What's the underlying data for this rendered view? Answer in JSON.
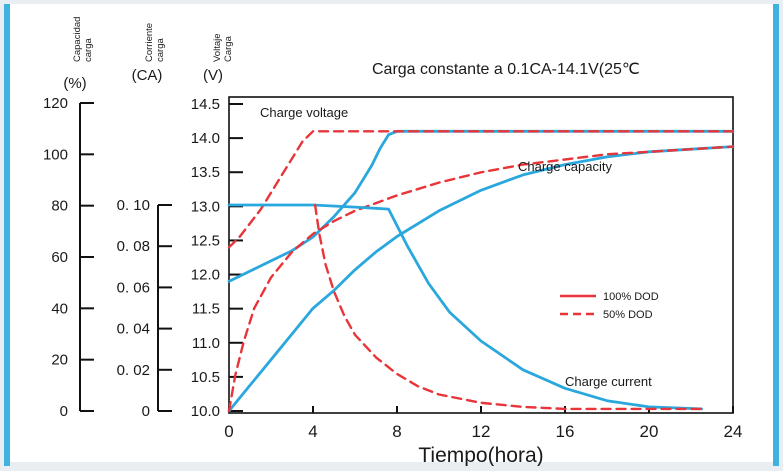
{
  "chart_data": {
    "type": "line",
    "title": "Carga constante a 0.1CA-14.1V(25℃",
    "xlabel": "Tiempo(hora)",
    "xlim": [
      0,
      24
    ],
    "x_ticks": [
      "0",
      "4",
      "8",
      "12",
      "16",
      "20",
      "24"
    ],
    "grid": false,
    "legend_position": "center-right",
    "colors": {
      "capacity_current": "#2aa7dc",
      "voltage_and_dod": "#e8353a",
      "frame": "#3fb2e0"
    },
    "axes": [
      {
        "id": "capacity",
        "label_lines": [
          "Capacidad",
          "carga"
        ],
        "unit": "(%)",
        "ylim": [
          0,
          120
        ],
        "ticks": [
          "0",
          "20",
          "40",
          "60",
          "80",
          "100",
          "120"
        ]
      },
      {
        "id": "current",
        "label_lines": [
          "Corriente",
          "carga"
        ],
        "unit": "(CA)",
        "ylim": [
          0,
          0.1
        ],
        "ticks": [
          "0",
          "0. 02",
          "0. 04",
          "0. 06",
          "0. 08",
          "0. 10"
        ]
      },
      {
        "id": "voltage",
        "label_lines": [
          "Voltaje",
          "Carga"
        ],
        "unit": "(V)",
        "ylim": [
          10.0,
          14.5
        ],
        "ticks": [
          "10.0",
          "10.5",
          "11.0",
          "11.5",
          "12.0",
          "12.5",
          "13.0",
          "13.5",
          "14.0",
          "14.5"
        ]
      }
    ],
    "legend": [
      {
        "label": "100% DOD",
        "style": "solid"
      },
      {
        "label": "50% DOD",
        "style": "dashed"
      }
    ],
    "annotations": [
      "Charge voltage",
      "Charge capacity",
      "Charge current"
    ],
    "series": [
      {
        "group": "Charge voltage",
        "dod": "100%",
        "axis": "voltage",
        "color": "#2aa7dc",
        "dash": false,
        "points": [
          [
            0,
            11.9
          ],
          [
            1,
            12.05
          ],
          [
            2,
            12.2
          ],
          [
            3,
            12.35
          ],
          [
            4,
            12.55
          ],
          [
            5,
            12.85
          ],
          [
            6,
            13.2
          ],
          [
            6.8,
            13.6
          ],
          [
            7.2,
            13.85
          ],
          [
            7.6,
            14.05
          ],
          [
            8,
            14.1
          ],
          [
            12,
            14.1
          ],
          [
            16,
            14.1
          ],
          [
            20,
            14.1
          ],
          [
            24,
            14.1
          ]
        ]
      },
      {
        "group": "Charge voltage",
        "dod": "50%",
        "axis": "voltage",
        "color": "#e8353a",
        "dash": true,
        "points": [
          [
            0,
            12.4
          ],
          [
            0.5,
            12.55
          ],
          [
            1,
            12.75
          ],
          [
            1.5,
            12.95
          ],
          [
            2,
            13.2
          ],
          [
            2.5,
            13.45
          ],
          [
            3,
            13.7
          ],
          [
            3.5,
            13.95
          ],
          [
            4,
            14.1
          ],
          [
            8,
            14.1
          ],
          [
            12,
            14.1
          ],
          [
            16,
            14.1
          ],
          [
            20,
            14.1
          ],
          [
            24,
            14.1
          ]
        ]
      },
      {
        "group": "Charge capacity",
        "dod": "100%",
        "axis": "capacity",
        "color": "#2aa7dc",
        "dash": false,
        "points": [
          [
            0,
            0
          ],
          [
            1,
            10
          ],
          [
            2,
            20
          ],
          [
            3,
            30
          ],
          [
            4,
            40
          ],
          [
            5,
            47
          ],
          [
            6,
            55
          ],
          [
            7,
            62
          ],
          [
            8,
            68
          ],
          [
            10,
            78
          ],
          [
            12,
            86
          ],
          [
            14,
            92
          ],
          [
            16,
            96
          ],
          [
            18,
            99
          ],
          [
            20,
            101
          ],
          [
            22,
            102
          ],
          [
            24,
            103
          ]
        ]
      },
      {
        "group": "Charge capacity",
        "dod": "50%",
        "axis": "capacity",
        "color": "#e8353a",
        "dash": true,
        "points": [
          [
            0,
            0
          ],
          [
            0.3,
            14
          ],
          [
            0.7,
            27
          ],
          [
            1.2,
            40
          ],
          [
            2,
            52
          ],
          [
            3,
            62
          ],
          [
            4,
            69
          ],
          [
            5,
            74
          ],
          [
            6,
            78
          ],
          [
            8,
            84
          ],
          [
            10,
            89
          ],
          [
            12,
            93
          ],
          [
            14,
            96
          ],
          [
            16,
            98
          ],
          [
            18,
            100
          ],
          [
            20,
            101
          ],
          [
            22,
            102
          ],
          [
            24,
            103
          ]
        ]
      },
      {
        "group": "Charge current",
        "dod": "100%",
        "axis": "current",
        "color": "#2aa7dc",
        "dash": false,
        "points": [
          [
            0,
            0.1
          ],
          [
            2,
            0.1
          ],
          [
            4,
            0.1
          ],
          [
            6,
            0.099
          ],
          [
            7.6,
            0.098
          ],
          [
            8.5,
            0.08
          ],
          [
            9.5,
            0.062
          ],
          [
            10.5,
            0.048
          ],
          [
            12,
            0.034
          ],
          [
            14,
            0.02
          ],
          [
            16,
            0.011
          ],
          [
            18,
            0.005
          ],
          [
            20,
            0.002
          ],
          [
            22.5,
            0.001
          ]
        ]
      },
      {
        "group": "Charge current",
        "dod": "50%",
        "axis": "current",
        "color": "#e8353a",
        "dash": true,
        "points": [
          [
            4.1,
            0.1
          ],
          [
            4.3,
            0.086
          ],
          [
            4.6,
            0.071
          ],
          [
            5,
            0.058
          ],
          [
            5.5,
            0.046
          ],
          [
            6,
            0.037
          ],
          [
            7,
            0.026
          ],
          [
            8,
            0.018
          ],
          [
            9,
            0.012
          ],
          [
            10,
            0.008
          ],
          [
            12,
            0.004
          ],
          [
            14,
            0.002
          ],
          [
            16,
            0.001
          ],
          [
            22.5,
            0.001
          ]
        ]
      }
    ]
  }
}
